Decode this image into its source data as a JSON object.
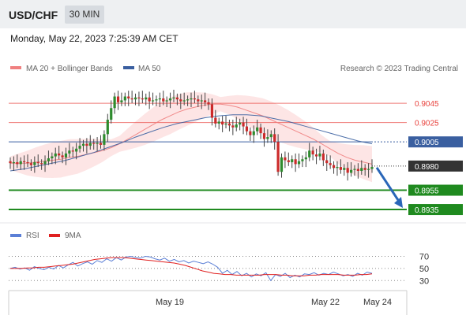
{
  "header": {
    "symbol": "USD/CHF",
    "timeframe": "30 MIN",
    "datetime": "Monday, May 22, 2023 7:25:39 AM CET"
  },
  "legend": {
    "ma20": "MA 20 + Bollinger Bands",
    "ma50": "MA 50",
    "credit": "Research © 2023 Trading Central",
    "ma20_color": "#f08080",
    "ma50_color": "#3a5fa0"
  },
  "chart_data": {
    "type": "candlestick",
    "ylim": [
      0.8922,
      0.9072
    ],
    "levels": [
      {
        "label": "0.9045",
        "value": 0.9045,
        "kind": "resistance",
        "color": "#e8413c"
      },
      {
        "label": "0.9025",
        "value": 0.9025,
        "kind": "resistance",
        "color": "#e8413c"
      },
      {
        "label": "0.9005",
        "value": 0.9005,
        "kind": "pivot",
        "color": "#3a5fa0"
      },
      {
        "label": "0.8980",
        "value": 0.898,
        "kind": "last-price",
        "color": "#333333"
      },
      {
        "label": "0.8955",
        "value": 0.8955,
        "kind": "support",
        "color": "#1f8a1f"
      },
      {
        "label": "0.8935",
        "value": 0.8935,
        "kind": "support",
        "color": "#1f8a1f"
      }
    ],
    "forecast": {
      "from": 0.898,
      "to": 0.8935,
      "direction": "down",
      "color": "#2a66b8"
    },
    "closes": [
      0.8983,
      0.8984,
      0.8982,
      0.8985,
      0.8984,
      0.8983,
      0.8981,
      0.8984,
      0.8983,
      0.8982,
      0.8985,
      0.8988,
      0.899,
      0.8993,
      0.8991,
      0.8989,
      0.8993,
      0.8996,
      0.8995,
      0.8998,
      0.9001,
      0.9003,
      0.9001,
      0.9004,
      0.9003,
      0.9004,
      0.9002,
      0.9013,
      0.9028,
      0.904,
      0.9052,
      0.9046,
      0.9048,
      0.9052,
      0.905,
      0.9049,
      0.9051,
      0.905,
      0.9049,
      0.9051,
      0.9047,
      0.9048,
      0.9049,
      0.905,
      0.9047,
      0.9048,
      0.905,
      0.9051,
      0.9049,
      0.9047,
      0.9048,
      0.9049,
      0.905,
      0.9049,
      0.9047,
      0.9048,
      0.9046,
      0.9044,
      0.903,
      0.9024,
      0.9026,
      0.9023,
      0.9024,
      0.9022,
      0.902,
      0.9023,
      0.9025,
      0.9021,
      0.9016,
      0.9012,
      0.9016,
      0.902,
      0.9014,
      0.9008,
      0.901,
      0.9013,
      0.9005,
      0.8974,
      0.8989,
      0.8986,
      0.8984,
      0.8987,
      0.8982,
      0.8985,
      0.8987,
      0.8989,
      0.8996,
      0.8992,
      0.899,
      0.8993,
      0.8986,
      0.8983,
      0.8981,
      0.8978,
      0.8979,
      0.8976,
      0.8978,
      0.8973,
      0.8976,
      0.8977,
      0.8975,
      0.8978,
      0.8976,
      0.8977,
      0.8979
    ],
    "ma20": [
      0.8983,
      0.8983,
      0.8983,
      0.8984,
      0.8985,
      0.8986,
      0.8987,
      0.8989,
      0.899,
      0.8992,
      0.8994,
      0.8996,
      0.8999,
      0.9003,
      0.9008,
      0.9013,
      0.9018,
      0.9023,
      0.9028,
      0.9032,
      0.9036,
      0.9039,
      0.9041,
      0.9043,
      0.9044,
      0.9044,
      0.9043,
      0.9041,
      0.9038,
      0.9035,
      0.9032,
      0.9028,
      0.9024,
      0.902,
      0.9016,
      0.9012,
      0.9008,
      0.9003,
      0.8998,
      0.8993,
      0.8989,
      0.8986,
      0.8984,
      0.8982
    ],
    "ma50": [
      0.8975,
      0.8977,
      0.898,
      0.8983,
      0.8986,
      0.899,
      0.8994,
      0.8999,
      0.9004,
      0.901,
      0.9015,
      0.902,
      0.9024,
      0.9027,
      0.903,
      0.9032,
      0.9033,
      0.9033,
      0.9032,
      0.9029,
      0.9026,
      0.9022,
      0.9018,
      0.9014,
      0.901,
      0.9006,
      0.9003
    ],
    "rsi": {
      "ticks": [
        "70",
        "50",
        "30"
      ],
      "ylim": [
        20,
        85
      ],
      "legend": [
        "RSI",
        "9MA"
      ],
      "rsi_color": "#5b7fd6",
      "ma_color": "#e02020",
      "rsi_values": [
        50,
        52,
        49,
        51,
        47,
        53,
        50,
        48,
        52,
        49,
        55,
        51,
        56,
        60,
        54,
        58,
        61,
        57,
        63,
        60,
        66,
        62,
        68,
        64,
        69,
        70,
        68,
        67,
        70,
        69,
        66,
        64,
        67,
        62,
        65,
        61,
        63,
        59,
        62,
        60,
        58,
        61,
        57,
        52,
        42,
        47,
        40,
        45,
        38,
        42,
        36,
        41,
        38,
        43,
        30,
        40,
        37,
        42,
        35,
        39,
        36,
        41,
        40,
        43,
        39,
        42,
        40,
        44,
        41,
        38,
        40,
        37,
        42,
        39,
        44,
        42
      ],
      "ma_values": [
        50,
        50,
        50,
        51,
        51,
        52,
        52,
        53,
        54,
        55,
        56,
        57,
        59,
        61,
        63,
        65,
        66,
        67,
        68,
        68,
        68,
        67,
        66,
        65,
        64,
        63,
        62,
        61,
        60,
        59,
        57,
        55,
        52,
        49,
        46,
        44,
        42,
        41,
        40,
        40,
        39,
        39,
        39,
        39,
        39,
        40,
        40,
        40,
        39,
        39,
        38,
        38,
        38,
        39,
        39,
        40,
        40,
        40,
        40,
        39,
        39,
        39,
        40,
        40,
        41
      ]
    },
    "xticks": [
      "May 19",
      "May 22",
      "May 24"
    ]
  }
}
